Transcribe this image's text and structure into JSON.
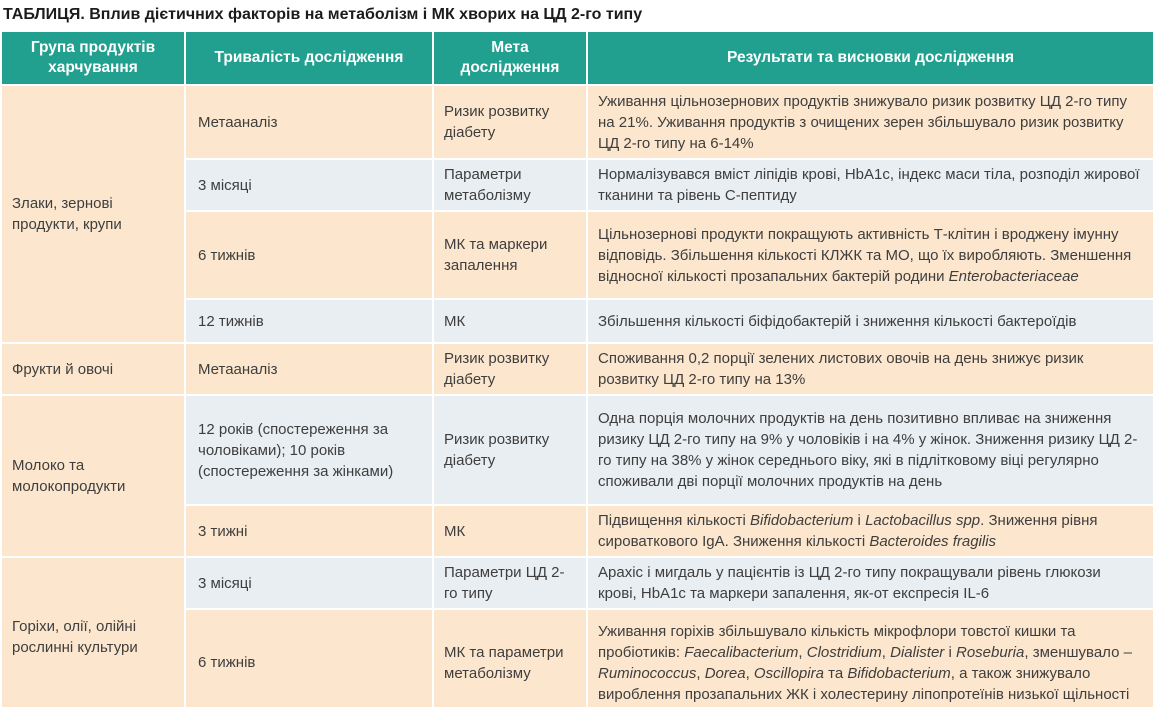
{
  "title": "ТАБЛИЦЯ. Вплив дієтичних факторів на метаболізм і МК хворих на ЦД 2-го типу",
  "colors": {
    "header_bg": "#21a08f",
    "header_text": "#ffffff",
    "row_peach": "#fce7ce",
    "row_blue": "#e9eef2",
    "body_text": "#3e3e3e",
    "title_text": "#1c1c1c"
  },
  "table": {
    "headers": [
      "Група продуктів харчування",
      "Тривалість дослідження",
      "Мета дослідження",
      "Результати та висновки дослідження"
    ],
    "groups": [
      {
        "name": "Злаки, зернові продукти, крупи",
        "rows": [
          {
            "duration": "Метааналіз",
            "purpose": "Ризик розвитку діабету",
            "result": [
              {
                "t": "Уживання цільнозернових продуктів знижувало ризик розвитку ЦД 2-го типу на 21%. Уживання продуктів з очищених зерен збільшувало ризик розвитку ЦД 2-го типу на 6-14%"
              }
            ]
          },
          {
            "duration": "3 місяці",
            "purpose": "Параметри метаболізму",
            "result": [
              {
                "t": "Нормалізувався вміст ліпідів крові, HbA1c, індекс маси тіла, розподіл жирової тканини та рівень С-пептиду"
              }
            ]
          },
          {
            "duration": "6 тижнів",
            "purpose": "МК та маркери запалення",
            "result": [
              {
                "t": "Цільнозернові продукти покращують активність Т-клітин і вроджену імунну відповідь. Збільшення кількості КЛЖК та МО, що їх виробляють. Зменшення відносної кількості прозапальних бактерій родини "
              },
              {
                "t": "Enterobacteriaceae",
                "i": true
              }
            ]
          },
          {
            "duration": "12 тижнів",
            "purpose": "МК",
            "result": [
              {
                "t": "Збільшення кількості біфідобактерій і зниження кількості бактероїдів"
              }
            ]
          }
        ]
      },
      {
        "name": "Фрукти й овочі",
        "rows": [
          {
            "duration": "Метааналіз",
            "purpose": "Ризик розвитку діабету",
            "result": [
              {
                "t": "Споживання 0,2 порції зелених листових овочів на день знижує ризик розвитку ЦД 2-го типу на 13%"
              }
            ]
          }
        ]
      },
      {
        "name": "Молоко та молокопродукти",
        "rows": [
          {
            "duration": "12 років (спостереження за чоловіками); 10 років (спостереження за жінками)",
            "purpose": "Ризик розвитку діабету",
            "result": [
              {
                "t": "Одна порція молочних продуктів на день позитивно впливає на зниження ризику ЦД 2-го типу на 9% у чоловіків і на 4% у жінок. Зниження ризику ЦД 2-го типу на 38% у жінок середнього віку, які в підлітковому віці регулярно споживали дві порції молочних продуктів на день"
              }
            ]
          },
          {
            "duration": "3 тижні",
            "purpose": "МК",
            "result": [
              {
                "t": "Підвищення кількості "
              },
              {
                "t": "Bifidobacterium",
                "i": true
              },
              {
                "t": " і "
              },
              {
                "t": "Lactobacillus spp",
                "i": true
              },
              {
                "t": ". Зниження рівня сироваткового IgA. Зниження кількості "
              },
              {
                "t": "Bacteroides fragilis",
                "i": true
              }
            ]
          }
        ]
      },
      {
        "name": "Горіхи, олії, олійні рослинні культури",
        "rows": [
          {
            "duration": "3 місяці",
            "purpose": "Параметри ЦД 2-го типу",
            "result": [
              {
                "t": "Арахіс і мигдаль у пацієнтів із ЦД 2-го типу покращували рівень глюкози крові, HbA1c та маркери запалення, як-от експресія IL-6"
              }
            ]
          },
          {
            "duration": "6 тижнів",
            "purpose": "МК та параметри метаболізму",
            "result": [
              {
                "t": "Уживання горіхів збільшувало кількість мікрофлори товстої кишки та пробіотиків: "
              },
              {
                "t": "Faecalibacterium",
                "i": true
              },
              {
                "t": ", "
              },
              {
                "t": "Clostridium",
                "i": true
              },
              {
                "t": ", "
              },
              {
                "t": "Dialister",
                "i": true
              },
              {
                "t": " і "
              },
              {
                "t": "Roseburia",
                "i": true
              },
              {
                "t": ", зменшувало – "
              },
              {
                "t": "Ruminococcus",
                "i": true
              },
              {
                "t": ", "
              },
              {
                "t": "Dorea",
                "i": true
              },
              {
                "t": ", "
              },
              {
                "t": "Oscillopira",
                "i": true
              },
              {
                "t": " та "
              },
              {
                "t": "Bifidobacterium",
                "i": true
              },
              {
                "t": ", а також знижувало вироблення прозапальних ЖК і холестерину ліпопротеїнів низької щільності"
              }
            ]
          }
        ]
      }
    ]
  }
}
